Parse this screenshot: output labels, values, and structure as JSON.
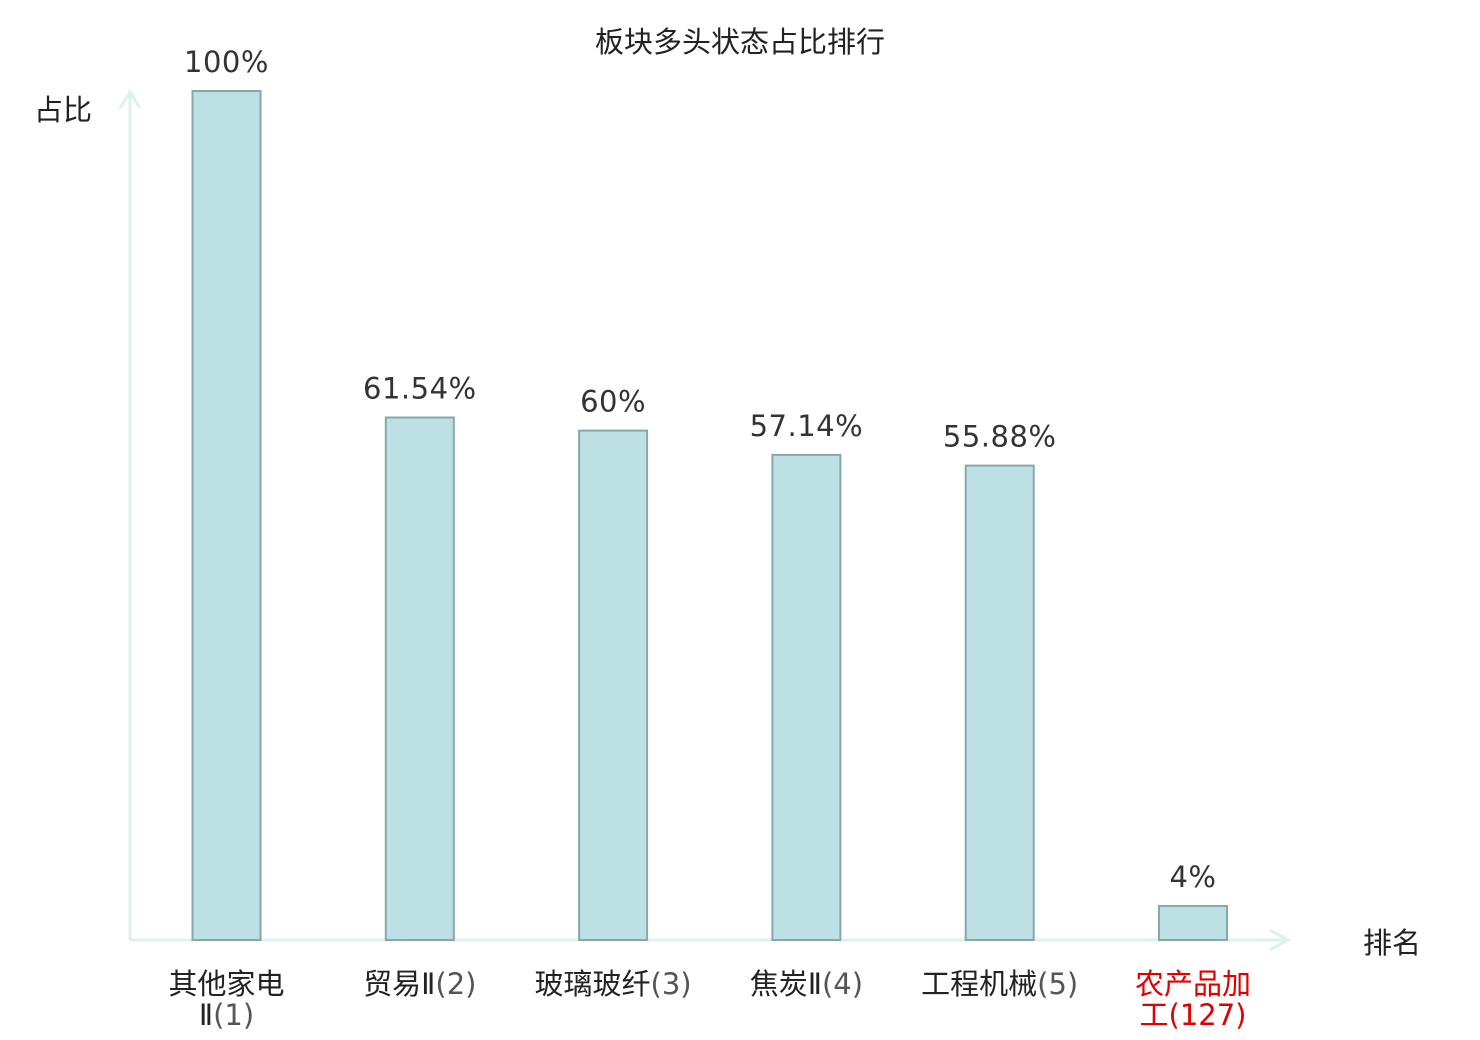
{
  "chart_data": {
    "type": "bar",
    "title": "板块多头状态占比排行",
    "ylabel": "占比",
    "xlabel": "排名",
    "ylim": [
      0,
      100
    ],
    "categories": [
      {
        "name_lines": [
          "其他家电",
          "Ⅱ"
        ],
        "rank": "(1)",
        "highlight": false
      },
      {
        "name_lines": [
          "贸易Ⅱ"
        ],
        "rank": "(2)",
        "highlight": false
      },
      {
        "name_lines": [
          "玻璃玻纤"
        ],
        "rank": "(3)",
        "highlight": false
      },
      {
        "name_lines": [
          "焦炭Ⅱ"
        ],
        "rank": "(4)",
        "highlight": false
      },
      {
        "name_lines": [
          "工程机械"
        ],
        "rank": "(5)",
        "highlight": false
      },
      {
        "name_lines": [
          "农产品加",
          "工"
        ],
        "rank": "(127)",
        "highlight": true
      }
    ],
    "values": [
      100,
      61.54,
      60,
      57.14,
      55.88,
      4
    ],
    "value_labels": [
      "100%",
      "61.54%",
      "60%",
      "57.14%",
      "55.88%",
      "4%"
    ],
    "grid": false,
    "legend": "none"
  },
  "colors": {
    "bar_fill": "#bce0e3",
    "bar_stroke": "#86a8ac",
    "axis": "#dff1ef",
    "text": "#222222",
    "highlight_text": "#e00000"
  }
}
